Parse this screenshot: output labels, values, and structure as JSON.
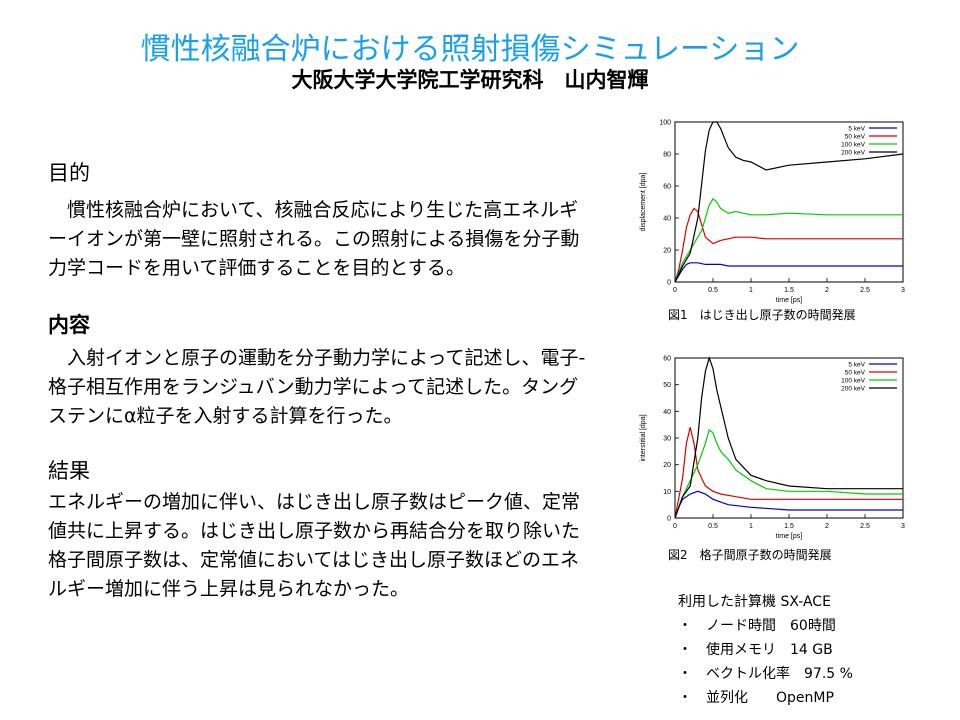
{
  "title": "慣性核融合炉における照射損傷シミュレーション",
  "author": "大阪大学大学院工学研究科　山内智輝",
  "sections": [
    {
      "heading": "目的",
      "body": "　慣性核融合炉において、核融合反応により生じた高エネルギーイオンが第一壁に照射される。この照射による損傷を分子動力学コードを用いて評価することを目的とする。"
    },
    {
      "heading": "内容",
      "body": "　入射イオンと原子の運動を分子動力学によって記述し、電子-格子相互作用をランジュバン動力学によって記述した。タングステンにα粒子を入射する計算を行った。"
    },
    {
      "heading": "結果",
      "body": "エネルギーの増加に伴い、はじき出し原子数はピーク値、定常値共に上昇する。はじき出し原子数から再結合分を取り除いた格子間原子数は、定常値においてはじき出し原子数ほどのエネルギー増加に伴う上昇は見られなかった。"
    }
  ],
  "captions": {
    "fig1": "図1　はじき出し原子数の時間発展",
    "fig2": "図2　格子間原子数の時間発展"
  },
  "specs": {
    "title": "利用した計算機 SX-ACE",
    "items": [
      "・　ノード時間　60時間",
      "・　使用メモリ　14 GB",
      "・　ベクトル化率　97.5 %",
      "・　並列化　　OpenMP"
    ]
  },
  "colors": {
    "title": "#1aa0e8",
    "5keV": "#0000cc",
    "50keV": "#dd0000",
    "100keV": "#00cc00",
    "200keV": "#000000"
  },
  "chart_data": [
    {
      "type": "line",
      "xlabel": "time [ps]",
      "ylabel": "displacement [dpa]",
      "xlim": [
        0,
        3
      ],
      "ylim": [
        0,
        100
      ],
      "xticks": [
        0,
        0.5,
        1,
        1.5,
        2,
        2.5,
        3
      ],
      "xtick_labels": [
        "0",
        "0.5",
        "1",
        "1.5",
        "2",
        "2.5",
        "3"
      ],
      "yticks": [
        0,
        20,
        40,
        60,
        80,
        100
      ],
      "legend": "top-right",
      "series": [
        {
          "name": "5 keV",
          "color": "#0000cc",
          "x": [
            0,
            0.05,
            0.1,
            0.15,
            0.2,
            0.3,
            0.4,
            0.5,
            0.6,
            0.7,
            0.8,
            1.0,
            1.5,
            2.0,
            2.5,
            3.0
          ],
          "y": [
            0,
            4,
            8,
            11,
            12,
            12,
            11,
            11,
            11,
            10,
            10,
            10,
            10,
            10,
            10,
            10
          ]
        },
        {
          "name": "50 keV",
          "color": "#dd0000",
          "x": [
            0,
            0.05,
            0.1,
            0.15,
            0.2,
            0.25,
            0.3,
            0.35,
            0.4,
            0.5,
            0.6,
            0.7,
            0.8,
            1.0,
            1.2,
            1.5,
            2.0,
            2.5,
            3.0
          ],
          "y": [
            0,
            8,
            20,
            34,
            42,
            46,
            44,
            36,
            28,
            24,
            26,
            27,
            28,
            28,
            27,
            27,
            27,
            27,
            27
          ]
        },
        {
          "name": "100 keV",
          "color": "#00cc00",
          "x": [
            0,
            0.1,
            0.2,
            0.3,
            0.35,
            0.4,
            0.45,
            0.5,
            0.55,
            0.6,
            0.7,
            0.8,
            1.0,
            1.2,
            1.5,
            2.0,
            2.5,
            3.0
          ],
          "y": [
            0,
            12,
            20,
            28,
            32,
            40,
            48,
            52,
            50,
            46,
            43,
            44,
            42,
            42,
            43,
            42,
            42,
            42
          ]
        },
        {
          "name": "200 keV",
          "color": "#000000",
          "x": [
            0,
            0.1,
            0.2,
            0.3,
            0.4,
            0.45,
            0.5,
            0.55,
            0.6,
            0.7,
            0.8,
            0.9,
            1.0,
            1.2,
            1.5,
            2.0,
            2.5,
            3.0
          ],
          "y": [
            0,
            10,
            18,
            40,
            82,
            95,
            100,
            100,
            96,
            84,
            78,
            76,
            75,
            70,
            73,
            75,
            77,
            80
          ]
        }
      ]
    },
    {
      "type": "line",
      "xlabel": "time [ps]",
      "ylabel": "interstitial [dpa]",
      "xlim": [
        0,
        3
      ],
      "ylim": [
        0,
        60
      ],
      "xticks": [
        0,
        0.5,
        1,
        1.5,
        2,
        2.5,
        3
      ],
      "xtick_labels": [
        "0",
        "0.5",
        "1",
        "1.5",
        "2",
        "2.5",
        "3"
      ],
      "yticks": [
        0,
        10,
        20,
        30,
        40,
        50,
        60
      ],
      "legend": "top-right",
      "series": [
        {
          "name": "5 keV",
          "color": "#0000cc",
          "x": [
            0,
            0.05,
            0.1,
            0.2,
            0.3,
            0.4,
            0.5,
            0.7,
            1.0,
            1.5,
            2.0,
            2.5,
            3.0
          ],
          "y": [
            0,
            4,
            7,
            9,
            10,
            9,
            7,
            5,
            4,
            3,
            3,
            3,
            3
          ]
        },
        {
          "name": "50 keV",
          "color": "#dd0000",
          "x": [
            0,
            0.1,
            0.15,
            0.2,
            0.25,
            0.3,
            0.4,
            0.5,
            0.6,
            0.8,
            1.0,
            1.5,
            2.0,
            2.5,
            3.0
          ],
          "y": [
            0,
            15,
            28,
            34,
            28,
            18,
            12,
            10,
            9,
            8,
            7,
            7,
            7,
            7,
            7
          ]
        },
        {
          "name": "100 keV",
          "color": "#00cc00",
          "x": [
            0,
            0.1,
            0.2,
            0.3,
            0.4,
            0.45,
            0.5,
            0.55,
            0.6,
            0.7,
            0.8,
            1.0,
            1.2,
            1.5,
            2.0,
            2.5,
            3.0
          ],
          "y": [
            0,
            8,
            14,
            20,
            28,
            33,
            32,
            28,
            25,
            22,
            18,
            14,
            11,
            10,
            10,
            9,
            9
          ]
        },
        {
          "name": "200 keV",
          "color": "#000000",
          "x": [
            0,
            0.1,
            0.2,
            0.3,
            0.35,
            0.4,
            0.45,
            0.5,
            0.55,
            0.6,
            0.7,
            0.8,
            1.0,
            1.2,
            1.5,
            2.0,
            2.5,
            3.0
          ],
          "y": [
            0,
            8,
            12,
            30,
            45,
            55,
            60,
            56,
            48,
            42,
            30,
            22,
            16,
            14,
            12,
            11,
            11,
            11
          ]
        }
      ]
    }
  ]
}
